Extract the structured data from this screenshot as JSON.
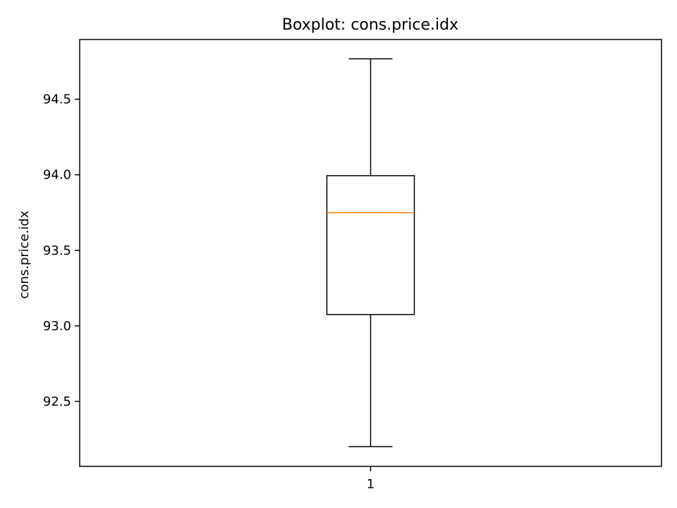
{
  "chart_data": {
    "type": "box",
    "title": "Boxplot: cons.price.idx",
    "xlabel": "",
    "ylabel": "cons.price.idx",
    "ylim": [
      92.07,
      94.895
    ],
    "yticks": [
      92.5,
      93.0,
      93.5,
      94.0,
      94.5
    ],
    "ytick_labels": [
      "92.5",
      "93.0",
      "93.5",
      "94.0",
      "94.5"
    ],
    "grid": false,
    "categories": [
      "1"
    ],
    "boxes": [
      {
        "whisker_low": 92.201,
        "q1": 93.075,
        "median": 93.749,
        "q3": 93.994,
        "whisker_high": 94.767
      }
    ],
    "colors": {
      "box": "#000000",
      "median": "#ff7f0e",
      "axes": "#000000"
    }
  }
}
